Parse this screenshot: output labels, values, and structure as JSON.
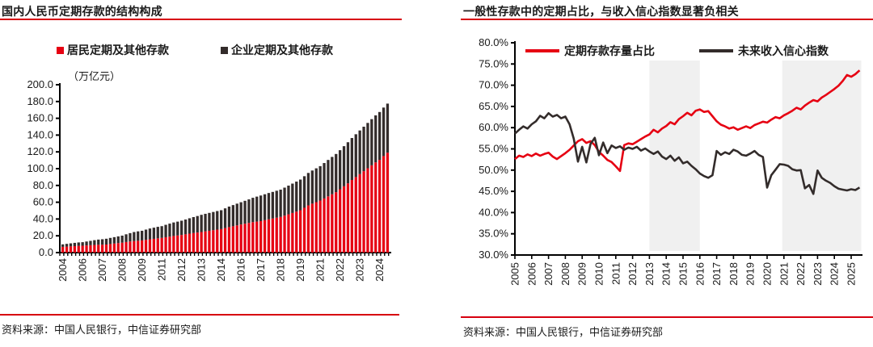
{
  "page": {
    "background": "#ffffff",
    "text_color": "#1a1a1a"
  },
  "colors": {
    "accent_red": "#e60012",
    "rule_red": "#d7000f",
    "dark": "#332c2b",
    "band_gray": "#f0f0f0",
    "axis_black": "#000000"
  },
  "left_panel": {
    "source": "资料来源：中国人民银行，中信证券研究部"
  },
  "right_panel": {
    "source": "资料来源：中国人民银行，中信证券研究部"
  },
  "chart_data": [
    {
      "type": "bar",
      "stacked": true,
      "title": "国内人民币定期存款的结构构成",
      "unit_label": "（万亿元）",
      "x_freq": "quarterly",
      "x_start": "2004Q4",
      "ylim": [
        0,
        200
      ],
      "y_tick_step": 20,
      "y_tick_labels": [
        "200.0",
        "180.0",
        "160.0",
        "140.0",
        "120.0",
        "100.0",
        "80.0",
        "60.0",
        "40.0",
        "20.0",
        "0.0"
      ],
      "x_tick_labels": [
        "2004",
        "2006",
        "2007",
        "2008",
        "2009",
        "2011",
        "2012",
        "2013",
        "2014",
        "2016",
        "2017",
        "2018",
        "2019",
        "2021",
        "2022",
        "2023",
        "2024"
      ],
      "x_label_every_n_bars": 5,
      "legend_position": "top",
      "series": [
        {
          "name": "居民定期及其他存款",
          "color": "#e60012",
          "values": [
            6.8,
            7.1,
            7.4,
            7.7,
            8.0,
            8.2,
            8.5,
            8.8,
            9.1,
            9.3,
            9.4,
            9.6,
            10.2,
            10.8,
            11.3,
            11.8,
            12.6,
            13.2,
            13.7,
            14.1,
            14.5,
            15.2,
            15.9,
            16.4,
            17.0,
            17.5,
            18.3,
            19.0,
            19.8,
            20.4,
            21.0,
            21.8,
            22.6,
            23.3,
            23.9,
            24.5,
            25.3,
            26.0,
            26.7,
            27.4,
            28.0,
            29.2,
            30.4,
            31.4,
            32.4,
            33.5,
            34.4,
            35.3,
            36.3,
            36.9,
            37.5,
            38.6,
            39.7,
            40.6,
            41.6,
            42.5,
            44.0,
            45.6,
            47.2,
            48.8,
            50.5,
            53.4,
            56.2,
            58.3,
            60.1,
            62.0,
            64.5,
            67.0,
            69.5,
            72.0,
            75.5,
            79.0,
            82.5,
            86.5,
            90.0,
            93.5,
            97.0,
            100.5,
            104.0,
            107.5,
            110.5,
            115.0,
            119.0
          ]
        },
        {
          "name": "企业定期及其他存款",
          "color": "#332c2b",
          "values": [
            3.0,
            3.3,
            3.6,
            3.9,
            4.1,
            4.2,
            4.7,
            5.2,
            5.7,
            6.2,
            6.5,
            6.9,
            7.3,
            7.6,
            8.0,
            8.4,
            9.2,
            10.0,
            10.8,
            11.2,
            11.5,
            12.2,
            12.8,
            13.3,
            13.7,
            14.0,
            14.8,
            15.5,
            16.1,
            16.5,
            17.0,
            17.6,
            18.3,
            19.0,
            19.7,
            20.5,
            20.9,
            21.3,
            21.7,
            22.1,
            22.5,
            23.5,
            24.4,
            25.2,
            25.9,
            26.5,
            27.3,
            28.1,
            29.0,
            29.8,
            30.5,
            30.9,
            31.3,
            31.7,
            32.1,
            32.5,
            33.4,
            34.2,
            35.0,
            35.8,
            36.5,
            37.6,
            38.7,
            39.5,
            40.3,
            41.0,
            42.2,
            43.4,
            44.5,
            45.5,
            46.5,
            47.8,
            49.0,
            50.0,
            51.0,
            52.0,
            53.0,
            54.0,
            55.0,
            56.0,
            57.0,
            57.8,
            58.5
          ]
        }
      ]
    },
    {
      "type": "line",
      "title": "一般性存款中的定期占比，与收入信心指数显著负相关",
      "x_freq": "quarterly",
      "x_start_year": 2005,
      "ylim": [
        30,
        80
      ],
      "y_tick_step": 5,
      "y_tick_labels": [
        "80.0%",
        "75.0%",
        "70.0%",
        "65.0%",
        "60.0%",
        "55.0%",
        "50.0%",
        "45.0%",
        "40.0%",
        "35.0%",
        "30.0%"
      ],
      "x_tick_labels": [
        "2005",
        "2006",
        "2007",
        "2008",
        "2009",
        "2010",
        "2011",
        "2012",
        "2013",
        "2014",
        "2015",
        "2016",
        "2017",
        "2018",
        "2019",
        "2020",
        "2021",
        "2022",
        "2023",
        "2024",
        "2025"
      ],
      "legend_position": "top-inside",
      "shaded_bands": [
        {
          "from": 2013,
          "to": 2016
        },
        {
          "from": 2020.9,
          "to": 2025.6
        }
      ],
      "series": [
        {
          "name": "定期存款存量占比",
          "color": "#e60012",
          "values": [
            52.6,
            53.4,
            53.1,
            53.7,
            53.3,
            53.9,
            53.4,
            53.8,
            54.1,
            53.2,
            52.6,
            53.3,
            54.0,
            54.8,
            55.8,
            56.8,
            57.3,
            56.4,
            56.8,
            55.9,
            54.3,
            53.4,
            52.4,
            51.9,
            50.9,
            49.8,
            55.9,
            56.3,
            56.1,
            56.7,
            57.3,
            57.9,
            58.4,
            59.5,
            58.9,
            59.8,
            60.4,
            61.3,
            60.8,
            62.0,
            62.7,
            63.5,
            62.9,
            64.0,
            64.3,
            63.7,
            63.9,
            62.7,
            61.5,
            60.7,
            60.3,
            59.8,
            60.1,
            59.5,
            59.9,
            60.3,
            59.9,
            60.6,
            61.0,
            61.4,
            61.2,
            61.9,
            62.5,
            62.2,
            62.9,
            63.4,
            64.0,
            64.7,
            64.3,
            65.2,
            65.9,
            66.5,
            66.2,
            67.1,
            67.7,
            68.4,
            69.1,
            69.9,
            71.0,
            72.4,
            72.0,
            72.6,
            73.5
          ]
        },
        {
          "name": "未来收入信心指数",
          "color": "#332c2b",
          "values": [
            58.6,
            59.5,
            60.3,
            59.8,
            60.8,
            61.5,
            62.8,
            62.2,
            63.4,
            62.6,
            63.0,
            62.2,
            62.6,
            60.8,
            57.4,
            52.0,
            55.5,
            51.8,
            56.2,
            57.6,
            53.5,
            56.5,
            54.0,
            55.8,
            55.2,
            55.6,
            54.8,
            55.3,
            55.0,
            55.5,
            54.6,
            55.1,
            54.4,
            53.8,
            54.4,
            53.2,
            52.6,
            53.4,
            52.2,
            53.0,
            51.6,
            52.0,
            51.0,
            50.2,
            49.2,
            48.6,
            48.2,
            48.8,
            54.5,
            53.6,
            54.2,
            53.8,
            54.8,
            54.4,
            53.6,
            53.4,
            53.9,
            54.5,
            53.6,
            53.1,
            45.9,
            48.8,
            50.1,
            51.4,
            51.3,
            51.0,
            50.2,
            49.9,
            50.0,
            45.7,
            46.5,
            44.4,
            49.9,
            48.2,
            47.5,
            47.0,
            46.2,
            45.6,
            45.4,
            45.2,
            45.5,
            45.3,
            45.9
          ]
        }
      ]
    }
  ]
}
